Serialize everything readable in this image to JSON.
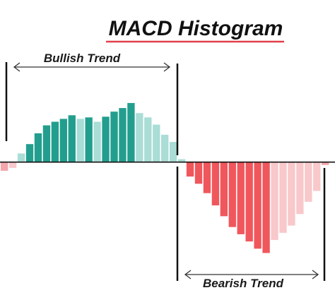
{
  "chart_data": {
    "type": "bar",
    "title": "MACD Histogram",
    "xlabel": "",
    "ylabel": "",
    "ylim": [
      -150,
      125
    ],
    "annotations": [
      {
        "text": "Bullish Trend",
        "span": [
          2,
          18
        ]
      },
      {
        "text": "Bearish Trend",
        "span": [
          20,
          37
        ]
      }
    ],
    "bars": [
      {
        "value": -12,
        "color": "#f4a6ab"
      },
      {
        "value": -8,
        "color": "#f8c8cb"
      },
      {
        "value": 12,
        "color": "#a9ddd6"
      },
      {
        "value": 25,
        "color": "#239e8e"
      },
      {
        "value": 40,
        "color": "#239e8e"
      },
      {
        "value": 51,
        "color": "#239e8e"
      },
      {
        "value": 56,
        "color": "#239e8e"
      },
      {
        "value": 60,
        "color": "#239e8e"
      },
      {
        "value": 65,
        "color": "#239e8e"
      },
      {
        "value": 60,
        "color": "#a9ddd6"
      },
      {
        "value": 62,
        "color": "#239e8e"
      },
      {
        "value": 56,
        "color": "#a9ddd6"
      },
      {
        "value": 63,
        "color": "#239e8e"
      },
      {
        "value": 70,
        "color": "#239e8e"
      },
      {
        "value": 75,
        "color": "#239e8e"
      },
      {
        "value": 82,
        "color": "#239e8e"
      },
      {
        "value": 68,
        "color": "#a9ddd6"
      },
      {
        "value": 62,
        "color": "#a9ddd6"
      },
      {
        "value": 52,
        "color": "#a9ddd6"
      },
      {
        "value": 38,
        "color": "#a9ddd6"
      },
      {
        "value": 28,
        "color": "#a9ddd6"
      },
      {
        "value": 4,
        "color": "#a9ddd6"
      },
      {
        "value": -20,
        "color": "#f0575c"
      },
      {
        "value": -30,
        "color": "#f0575c"
      },
      {
        "value": -43,
        "color": "#f0575c"
      },
      {
        "value": -60,
        "color": "#f0575c"
      },
      {
        "value": -75,
        "color": "#f0575c"
      },
      {
        "value": -90,
        "color": "#f0575c"
      },
      {
        "value": -100,
        "color": "#f0575c"
      },
      {
        "value": -110,
        "color": "#f0575c"
      },
      {
        "value": -120,
        "color": "#f0575c"
      },
      {
        "value": -126,
        "color": "#f0575c"
      },
      {
        "value": -108,
        "color": "#f8c8cb"
      },
      {
        "value": -98,
        "color": "#f8c8cb"
      },
      {
        "value": -88,
        "color": "#f8c8cb"
      },
      {
        "value": -72,
        "color": "#f8c8cb"
      },
      {
        "value": -55,
        "color": "#f8c8cb"
      },
      {
        "value": -40,
        "color": "#f8c8cb"
      },
      {
        "value": -4,
        "color": "#f4a6ab"
      }
    ],
    "legend": "none",
    "grid": false
  }
}
